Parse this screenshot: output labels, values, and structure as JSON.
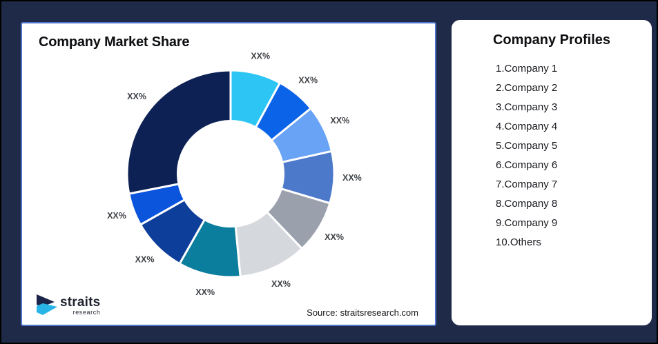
{
  "frame": {
    "background": "#1e2a47",
    "border_color": "#000000"
  },
  "chart_card": {
    "title": "Company Market Share",
    "source": "Source: straitsresearch.com",
    "border_color": "#4e74cf",
    "logo": {
      "name": "straits",
      "sub": "research",
      "navy": "#1b2448",
      "cyan": "#29b4e8"
    }
  },
  "profiles_card": {
    "title": "Company Profiles",
    "items": [
      "1.Company 1",
      "2.Company 2",
      "3.Company 3",
      "4.Company 4",
      "5.Company 5",
      "6.Company 6",
      "7.Company 7",
      "8.Company 8",
      "9.Company 9",
      "10.Others"
    ]
  },
  "chart_data": {
    "type": "pie",
    "subtype": "donut",
    "title": "Company Market Share",
    "start_angle_deg": 0,
    "clockwise": true,
    "inner_radius_ratio": 0.51,
    "legend_position": "none",
    "note": "All slice data labels are masked as XX%; values are angular-size estimates read from the figure",
    "segments": [
      {
        "name": "Company 1",
        "label": "XX%",
        "value": 7.9,
        "color": "#2cc5f4"
      },
      {
        "name": "Company 2",
        "label": "XX%",
        "value": 6.2,
        "color": "#0b64e8"
      },
      {
        "name": "Company 3",
        "label": "XX%",
        "value": 7.4,
        "color": "#68a3f5"
      },
      {
        "name": "Company 4",
        "label": "XX%",
        "value": 8.1,
        "color": "#4d79cb"
      },
      {
        "name": "Company 5",
        "label": "XX%",
        "value": 8.3,
        "color": "#9aa0ac"
      },
      {
        "name": "Company 6",
        "label": "XX%",
        "value": 10.6,
        "color": "#d5d8dd"
      },
      {
        "name": "Company 7",
        "label": "XX%",
        "value": 9.7,
        "color": "#0b7e9d"
      },
      {
        "name": "Company 8",
        "label": "XX%",
        "value": 8.6,
        "color": "#0d3e99"
      },
      {
        "name": "Company 9",
        "label": "XX%",
        "value": 5.1,
        "color": "#0b55dd"
      },
      {
        "name": "Others",
        "label": "XX%",
        "value": 28.1,
        "color": "#0d2155"
      }
    ]
  }
}
